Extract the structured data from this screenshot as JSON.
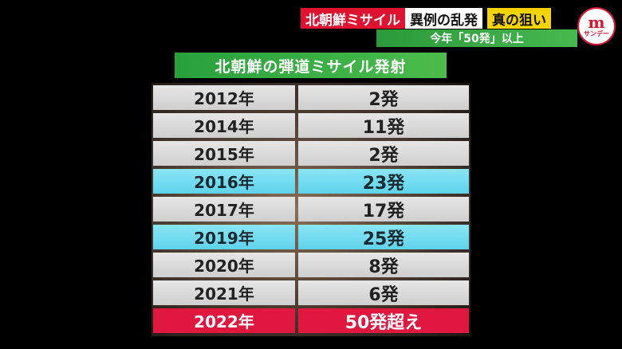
{
  "headline": {
    "red": "北朝鮮ミサイル",
    "white": "異例の乱発",
    "yellow": "真の狙い"
  },
  "subline": "今年「50発」以上",
  "logo": {
    "letter": "m",
    "sub": "サンデー"
  },
  "panel_title": "北朝鮮の弾道ミサイル発射",
  "rows": [
    {
      "year": "2012年",
      "count": "2発"
    },
    {
      "year": "2014年",
      "count": "11発"
    },
    {
      "year": "2015年",
      "count": "2発"
    },
    {
      "year": "2016年",
      "count": "23発"
    },
    {
      "year": "2017年",
      "count": "17発"
    },
    {
      "year": "2019年",
      "count": "25発"
    },
    {
      "year": "2020年",
      "count": "8発"
    },
    {
      "year": "2021年",
      "count": "6発"
    },
    {
      "year": "2022年",
      "count": "50発超え"
    }
  ],
  "colors": {
    "highlight": "#5fd2ea",
    "red": "#e0183f",
    "green": "#3aae46",
    "yellow": "#f6d400"
  }
}
